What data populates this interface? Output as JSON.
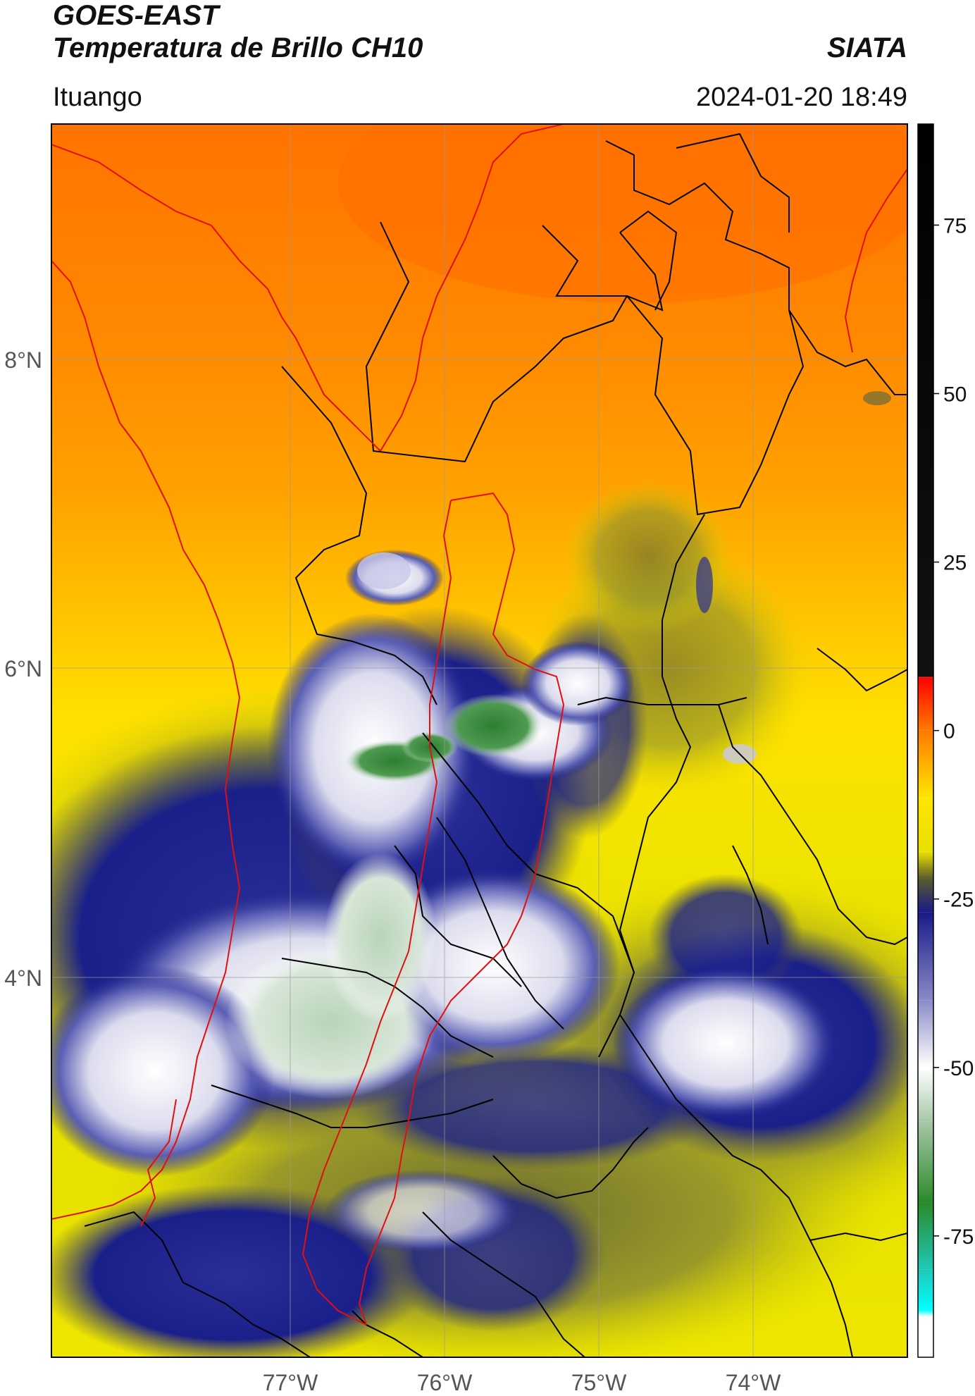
{
  "header": {
    "title_line1": "GOES-EAST",
    "title_line2": "Temperatura de Brillo CH10",
    "brand": "SIATA",
    "region": "Ituango",
    "timestamp": "2024-01-20 18:49"
  },
  "map": {
    "lat_labels": [
      "8°N",
      "6°N",
      "4°N"
    ],
    "lon_labels": [
      "77°W",
      "76°W",
      "75°W",
      "74°W"
    ],
    "colors": {
      "border_black": "#000000",
      "border_red": "#e01010",
      "gridline": "#9a9a9a",
      "warm_orange": "#ff7d00",
      "warm_yellow": "#ffe600",
      "cloud_navy": "#1a1f8a",
      "cloud_white": "#f4f4f8",
      "cloud_green": "#3a8a3a"
    }
  },
  "colorbar": {
    "ticks": [
      "75",
      "50",
      "25",
      "0",
      "-25",
      "-50",
      "-75"
    ],
    "stops": [
      {
        "value": 90,
        "color": "#000000"
      },
      {
        "value": 8,
        "color": "#111111"
      },
      {
        "value": 7.9,
        "color": "#ff0000"
      },
      {
        "value": 0,
        "color": "#ff7a00"
      },
      {
        "value": -10,
        "color": "#ffe600"
      },
      {
        "value": -18,
        "color": "#e8e000"
      },
      {
        "value": -22,
        "color": "#5a5a30"
      },
      {
        "value": -27,
        "color": "#1a1a88"
      },
      {
        "value": -40,
        "color": "#8a8ac8"
      },
      {
        "value": -50,
        "color": "#ffffff"
      },
      {
        "value": -58,
        "color": "#a8c8a8"
      },
      {
        "value": -70,
        "color": "#2a8a2a"
      },
      {
        "value": -80,
        "color": "#20c8b8"
      },
      {
        "value": -86,
        "color": "#00ffff"
      },
      {
        "value": -87,
        "color": "#ffffff"
      },
      {
        "value": -93,
        "color": "#ffffff"
      }
    ]
  }
}
